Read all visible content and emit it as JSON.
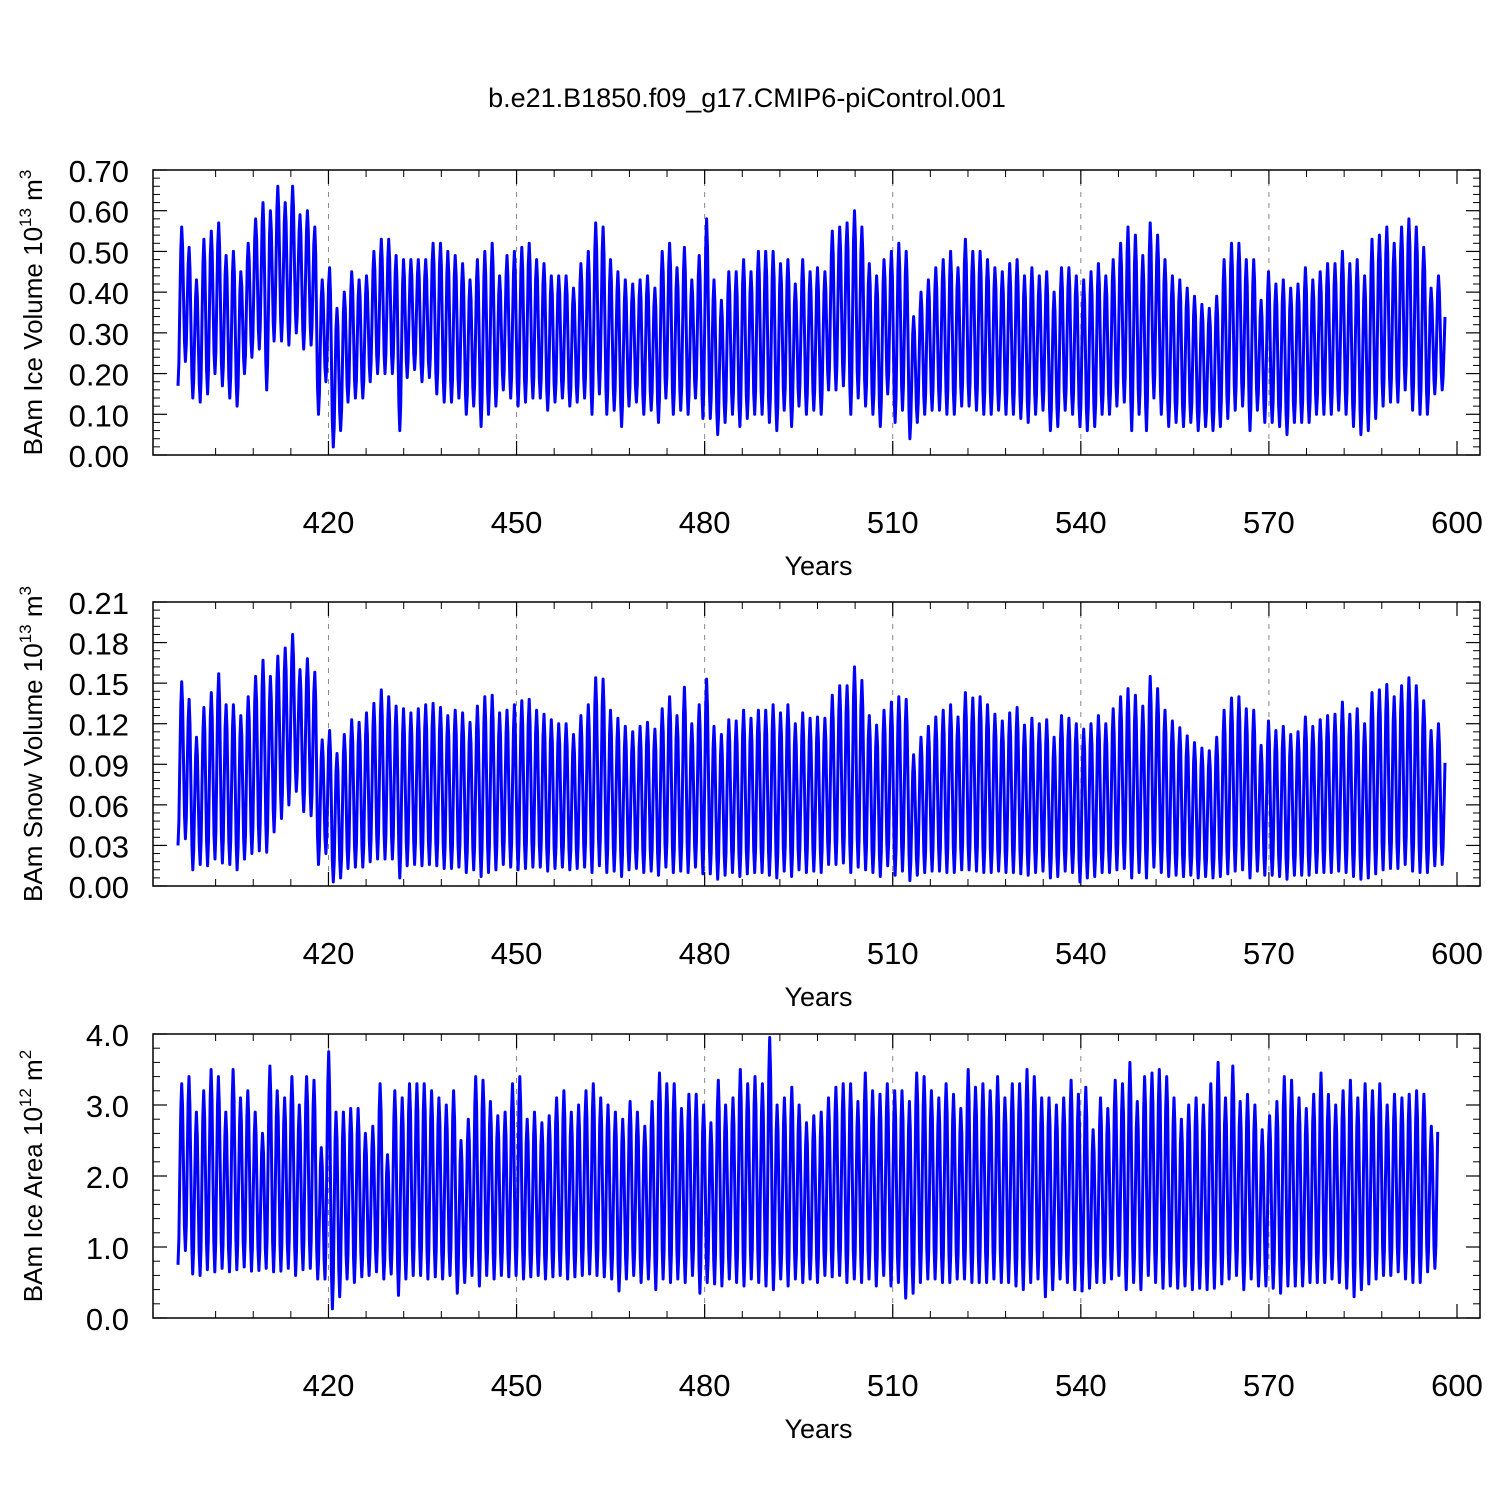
{
  "title": "b.e21.B1850.f09_g17.CMIP6-piControl.001",
  "line_color": "#0000ff",
  "chart_data": [
    {
      "type": "line",
      "id": "ice_volume",
      "ylabel": "BAm Ice Volume 10",
      "ylabel_exp": "13",
      "ylabel_unit": " m",
      "ylabel_unit_exp": "3",
      "xlabel": "Years",
      "xlim": [
        396,
        600
      ],
      "ylim": [
        0,
        0.7
      ],
      "xticks": [
        420,
        450,
        480,
        510,
        540,
        570,
        600
      ],
      "yticks": [
        0.0,
        0.1,
        0.2,
        0.3,
        0.4,
        0.5,
        0.6,
        0.7
      ],
      "ytick_labels": [
        "0.00",
        "0.10",
        "0.20",
        "0.30",
        "0.40",
        "0.50",
        "0.60",
        "0.70"
      ],
      "xgrid": "dashed",
      "annual_max": [
        0.56,
        0.51,
        0.43,
        0.53,
        0.55,
        0.57,
        0.49,
        0.5,
        0.45,
        0.52,
        0.58,
        0.62,
        0.6,
        0.66,
        0.62,
        0.66,
        0.59,
        0.6,
        0.56,
        0.43,
        0.46,
        0.36,
        0.4,
        0.45,
        0.43,
        0.44,
        0.5,
        0.53,
        0.53,
        0.49,
        0.48,
        0.48,
        0.48,
        0.48,
        0.52,
        0.52,
        0.5,
        0.49,
        0.47,
        0.43,
        0.48,
        0.5,
        0.52,
        0.44,
        0.49,
        0.5,
        0.51,
        0.52,
        0.48,
        0.47,
        0.44,
        0.44,
        0.44,
        0.41,
        0.47,
        0.5,
        0.57,
        0.56,
        0.48,
        0.45,
        0.43,
        0.42,
        0.43,
        0.44,
        0.41,
        0.5,
        0.52,
        0.46,
        0.51,
        0.43,
        0.49,
        0.58,
        0.43,
        0.38,
        0.45,
        0.45,
        0.48,
        0.45,
        0.5,
        0.5,
        0.5,
        0.47,
        0.48,
        0.42,
        0.48,
        0.45,
        0.46,
        0.45,
        0.55,
        0.56,
        0.57,
        0.6,
        0.56,
        0.47,
        0.44,
        0.48,
        0.5,
        0.52,
        0.5,
        0.34,
        0.4,
        0.43,
        0.46,
        0.48,
        0.5,
        0.46,
        0.53,
        0.5,
        0.5,
        0.48,
        0.46,
        0.45,
        0.47,
        0.48,
        0.44,
        0.46,
        0.44,
        0.45,
        0.4,
        0.46,
        0.46,
        0.44,
        0.43,
        0.45,
        0.47,
        0.44,
        0.48,
        0.52,
        0.56,
        0.54,
        0.49,
        0.57,
        0.54,
        0.48,
        0.44,
        0.43,
        0.41,
        0.39,
        0.37,
        0.36,
        0.39,
        0.48,
        0.52,
        0.52,
        0.48,
        0.48,
        0.38,
        0.45,
        0.42,
        0.43,
        0.41,
        0.42,
        0.46,
        0.43,
        0.45,
        0.47,
        0.47,
        0.5,
        0.47,
        0.48,
        0.44,
        0.53,
        0.54,
        0.56,
        0.52,
        0.56,
        0.58,
        0.56,
        0.51,
        0.41,
        0.44,
        0.37,
        0.49
      ],
      "annual_min": [
        0.17,
        0.23,
        0.14,
        0.13,
        0.15,
        0.2,
        0.17,
        0.14,
        0.12,
        0.2,
        0.24,
        0.26,
        0.16,
        0.28,
        0.28,
        0.27,
        0.3,
        0.26,
        0.27,
        0.1,
        0.18,
        0.02,
        0.06,
        0.13,
        0.14,
        0.14,
        0.18,
        0.2,
        0.2,
        0.2,
        0.06,
        0.19,
        0.21,
        0.18,
        0.19,
        0.15,
        0.13,
        0.13,
        0.14,
        0.1,
        0.12,
        0.07,
        0.1,
        0.12,
        0.16,
        0.14,
        0.12,
        0.13,
        0.14,
        0.14,
        0.11,
        0.13,
        0.14,
        0.12,
        0.13,
        0.14,
        0.1,
        0.15,
        0.1,
        0.11,
        0.07,
        0.12,
        0.13,
        0.1,
        0.11,
        0.08,
        0.14,
        0.1,
        0.11,
        0.1,
        0.14,
        0.09,
        0.09,
        0.05,
        0.08,
        0.1,
        0.07,
        0.09,
        0.1,
        0.1,
        0.08,
        0.06,
        0.11,
        0.07,
        0.12,
        0.1,
        0.11,
        0.1,
        0.16,
        0.16,
        0.17,
        0.1,
        0.14,
        0.12,
        0.1,
        0.07,
        0.15,
        0.08,
        0.11,
        0.04,
        0.08,
        0.1,
        0.11,
        0.11,
        0.1,
        0.1,
        0.12,
        0.12,
        0.11,
        0.1,
        0.1,
        0.11,
        0.1,
        0.1,
        0.09,
        0.08,
        0.1,
        0.11,
        0.06,
        0.07,
        0.11,
        0.1,
        0.07,
        0.06,
        0.07,
        0.1,
        0.1,
        0.12,
        0.13,
        0.06,
        0.1,
        0.06,
        0.14,
        0.1,
        0.07,
        0.08,
        0.07,
        0.08,
        0.06,
        0.07,
        0.06,
        0.07,
        0.09,
        0.11,
        0.12,
        0.06,
        0.11,
        0.08,
        0.08,
        0.07,
        0.05,
        0.08,
        0.08,
        0.08,
        0.1,
        0.1,
        0.1,
        0.11,
        0.1,
        0.07,
        0.05,
        0.06,
        0.09,
        0.12,
        0.13,
        0.13,
        0.16,
        0.11,
        0.1,
        0.1,
        0.15,
        0.16
      ]
    },
    {
      "type": "line",
      "id": "snow_volume",
      "ylabel": "BAm Snow Volume 10",
      "ylabel_exp": "13",
      "ylabel_unit": " m",
      "ylabel_unit_exp": "3",
      "xlabel": "Years",
      "xlim": [
        396,
        600
      ],
      "ylim": [
        0,
        0.21
      ],
      "xticks": [
        420,
        450,
        480,
        510,
        540,
        570,
        600
      ],
      "yticks": [
        0.0,
        0.03,
        0.06,
        0.09,
        0.12,
        0.15,
        0.18,
        0.21
      ],
      "ytick_labels": [
        "0.00",
        "0.03",
        "0.06",
        "0.09",
        "0.12",
        "0.15",
        "0.18",
        "0.21"
      ],
      "xgrid": "dashed",
      "annual_max": [
        0.151,
        0.138,
        0.11,
        0.132,
        0.143,
        0.157,
        0.134,
        0.134,
        0.126,
        0.14,
        0.155,
        0.167,
        0.155,
        0.17,
        0.176,
        0.186,
        0.16,
        0.168,
        0.158,
        0.108,
        0.115,
        0.098,
        0.112,
        0.123,
        0.121,
        0.128,
        0.135,
        0.145,
        0.14,
        0.133,
        0.131,
        0.128,
        0.131,
        0.134,
        0.135,
        0.132,
        0.126,
        0.13,
        0.128,
        0.121,
        0.133,
        0.14,
        0.141,
        0.128,
        0.13,
        0.134,
        0.137,
        0.138,
        0.13,
        0.127,
        0.123,
        0.12,
        0.12,
        0.112,
        0.126,
        0.134,
        0.154,
        0.153,
        0.13,
        0.124,
        0.118,
        0.114,
        0.118,
        0.121,
        0.116,
        0.131,
        0.14,
        0.126,
        0.147,
        0.12,
        0.134,
        0.153,
        0.118,
        0.112,
        0.123,
        0.122,
        0.13,
        0.124,
        0.13,
        0.13,
        0.134,
        0.128,
        0.134,
        0.12,
        0.128,
        0.124,
        0.125,
        0.124,
        0.141,
        0.148,
        0.148,
        0.162,
        0.152,
        0.126,
        0.119,
        0.13,
        0.136,
        0.14,
        0.138,
        0.097,
        0.11,
        0.118,
        0.125,
        0.13,
        0.134,
        0.125,
        0.143,
        0.139,
        0.14,
        0.134,
        0.127,
        0.122,
        0.128,
        0.132,
        0.119,
        0.124,
        0.12,
        0.123,
        0.11,
        0.126,
        0.124,
        0.12,
        0.116,
        0.12,
        0.126,
        0.12,
        0.131,
        0.14,
        0.146,
        0.141,
        0.133,
        0.155,
        0.146,
        0.13,
        0.122,
        0.117,
        0.111,
        0.106,
        0.102,
        0.1,
        0.11,
        0.13,
        0.139,
        0.14,
        0.131,
        0.13,
        0.104,
        0.122,
        0.115,
        0.118,
        0.112,
        0.114,
        0.125,
        0.118,
        0.123,
        0.126,
        0.127,
        0.136,
        0.127,
        0.131,
        0.12,
        0.143,
        0.145,
        0.149,
        0.14,
        0.148,
        0.154,
        0.148,
        0.137,
        0.115,
        0.12,
        0.104,
        0.131
      ],
      "annual_min": [
        0.03,
        0.035,
        0.012,
        0.016,
        0.015,
        0.02,
        0.017,
        0.016,
        0.012,
        0.02,
        0.024,
        0.026,
        0.025,
        0.04,
        0.05,
        0.06,
        0.07,
        0.055,
        0.052,
        0.016,
        0.024,
        0.003,
        0.006,
        0.013,
        0.014,
        0.014,
        0.018,
        0.02,
        0.02,
        0.02,
        0.006,
        0.015,
        0.016,
        0.015,
        0.016,
        0.015,
        0.013,
        0.013,
        0.014,
        0.01,
        0.012,
        0.007,
        0.01,
        0.012,
        0.016,
        0.014,
        0.012,
        0.013,
        0.014,
        0.014,
        0.011,
        0.013,
        0.014,
        0.012,
        0.013,
        0.014,
        0.01,
        0.015,
        0.01,
        0.011,
        0.007,
        0.012,
        0.013,
        0.01,
        0.011,
        0.008,
        0.014,
        0.01,
        0.011,
        0.01,
        0.014,
        0.009,
        0.009,
        0.005,
        0.008,
        0.01,
        0.007,
        0.009,
        0.01,
        0.01,
        0.008,
        0.006,
        0.011,
        0.007,
        0.012,
        0.01,
        0.011,
        0.01,
        0.016,
        0.016,
        0.017,
        0.01,
        0.014,
        0.012,
        0.01,
        0.007,
        0.015,
        0.008,
        0.011,
        0.004,
        0.008,
        0.01,
        0.011,
        0.011,
        0.01,
        0.01,
        0.012,
        0.012,
        0.011,
        0.01,
        0.01,
        0.011,
        0.01,
        0.01,
        0.009,
        0.008,
        0.01,
        0.011,
        0.006,
        0.007,
        0.011,
        0.01,
        0.003,
        0.006,
        0.007,
        0.01,
        0.01,
        0.012,
        0.013,
        0.006,
        0.01,
        0.006,
        0.014,
        0.01,
        0.007,
        0.008,
        0.007,
        0.008,
        0.006,
        0.007,
        0.006,
        0.007,
        0.009,
        0.011,
        0.012,
        0.006,
        0.011,
        0.008,
        0.008,
        0.007,
        0.005,
        0.008,
        0.008,
        0.008,
        0.01,
        0.01,
        0.01,
        0.011,
        0.01,
        0.007,
        0.005,
        0.006,
        0.009,
        0.012,
        0.013,
        0.013,
        0.016,
        0.011,
        0.01,
        0.01,
        0.015,
        0.016
      ]
    },
    {
      "type": "line",
      "id": "ice_area",
      "ylabel": "BAm Ice Area 10",
      "ylabel_exp": "12",
      "ylabel_unit": " m",
      "ylabel_unit_exp": "2",
      "xlabel": "Years",
      "xlim": [
        396,
        600
      ],
      "ylim": [
        0,
        4.0
      ],
      "xticks": [
        420,
        450,
        480,
        510,
        540,
        570,
        600
      ],
      "yticks": [
        0.0,
        1.0,
        2.0,
        3.0,
        4.0
      ],
      "ytick_labels": [
        "0.0",
        "1.0",
        "2.0",
        "3.0",
        "4.0"
      ],
      "xgrid": "dashed",
      "annual_max": [
        3.3,
        3.4,
        2.9,
        3.2,
        3.5,
        3.4,
        2.9,
        3.5,
        3.1,
        3.2,
        2.9,
        2.6,
        3.55,
        3.2,
        3.1,
        3.4,
        3.0,
        3.4,
        3.35,
        2.4,
        3.75,
        2.9,
        2.9,
        2.95,
        2.95,
        2.6,
        2.7,
        3.3,
        2.3,
        3.2,
        3.1,
        3.3,
        3.3,
        3.3,
        3.2,
        3.1,
        3.0,
        3.2,
        2.5,
        2.8,
        3.4,
        3.35,
        3.05,
        2.85,
        2.9,
        3.3,
        3.4,
        2.8,
        2.9,
        2.75,
        2.85,
        3.1,
        3.2,
        2.9,
        3.0,
        3.2,
        3.3,
        3.1,
        3.0,
        2.9,
        2.8,
        3.05,
        2.9,
        2.7,
        3.05,
        3.45,
        3.3,
        3.3,
        2.95,
        3.15,
        3.15,
        3.0,
        2.75,
        3.35,
        3.0,
        3.1,
        3.5,
        3.3,
        3.4,
        3.3,
        3.95,
        3.0,
        3.1,
        3.25,
        3.0,
        2.75,
        2.85,
        2.9,
        3.1,
        3.25,
        3.3,
        3.3,
        3.05,
        3.45,
        3.2,
        3.15,
        3.3,
        3.2,
        3.2,
        3.05,
        3.45,
        3.4,
        3.2,
        3.1,
        3.3,
        3.15,
        2.95,
        3.5,
        3.25,
        3.3,
        3.2,
        3.4,
        3.1,
        3.3,
        3.3,
        3.5,
        3.4,
        3.1,
        3.1,
        3.0,
        3.1,
        3.35,
        3.15,
        3.25,
        2.65,
        3.1,
        2.95,
        3.35,
        3.3,
        3.6,
        3.05,
        3.4,
        3.45,
        3.5,
        3.4,
        3.1,
        2.8,
        3.0,
        3.1,
        3.0,
        3.3,
        3.6,
        3.1,
        3.55,
        3.05,
        3.15,
        3.0,
        2.65,
        2.85,
        3.05,
        3.4,
        3.35,
        3.1,
        2.95,
        3.15,
        3.45,
        3.15,
        3.0,
        3.2,
        3.35,
        3.1,
        3.3,
        3.2,
        3.3,
        3.0,
        3.15,
        3.1,
        3.15,
        3.2,
        3.15,
        2.7,
        2.95,
        3.3,
        3.25
      ],
      "annual_min": [
        0.75,
        0.95,
        0.62,
        0.6,
        0.68,
        0.65,
        0.7,
        0.65,
        0.68,
        0.72,
        0.66,
        0.67,
        0.7,
        0.65,
        0.66,
        0.7,
        0.6,
        0.68,
        0.7,
        0.55,
        0.55,
        0.13,
        0.3,
        0.55,
        0.5,
        0.58,
        0.6,
        0.65,
        0.55,
        0.62,
        0.32,
        0.55,
        0.6,
        0.6,
        0.55,
        0.58,
        0.55,
        0.6,
        0.35,
        0.5,
        0.6,
        0.45,
        0.6,
        0.55,
        0.6,
        0.58,
        0.6,
        0.55,
        0.58,
        0.6,
        0.55,
        0.58,
        0.6,
        0.55,
        0.58,
        0.6,
        0.62,
        0.6,
        0.58,
        0.55,
        0.38,
        0.55,
        0.6,
        0.5,
        0.55,
        0.4,
        0.55,
        0.5,
        0.55,
        0.5,
        0.6,
        0.35,
        0.5,
        0.48,
        0.45,
        0.55,
        0.5,
        0.45,
        0.55,
        0.5,
        0.45,
        0.4,
        0.55,
        0.45,
        0.55,
        0.5,
        0.55,
        0.5,
        0.6,
        0.58,
        0.6,
        0.5,
        0.55,
        0.5,
        0.55,
        0.45,
        0.6,
        0.45,
        0.5,
        0.28,
        0.35,
        0.5,
        0.55,
        0.55,
        0.5,
        0.5,
        0.55,
        0.55,
        0.5,
        0.5,
        0.5,
        0.55,
        0.5,
        0.5,
        0.45,
        0.4,
        0.5,
        0.55,
        0.3,
        0.4,
        0.55,
        0.5,
        0.4,
        0.38,
        0.42,
        0.5,
        0.5,
        0.55,
        0.6,
        0.4,
        0.5,
        0.4,
        0.6,
        0.5,
        0.42,
        0.45,
        0.42,
        0.45,
        0.4,
        0.42,
        0.4,
        0.42,
        0.48,
        0.55,
        0.6,
        0.4,
        0.55,
        0.45,
        0.45,
        0.42,
        0.35,
        0.45,
        0.45,
        0.45,
        0.5,
        0.5,
        0.5,
        0.55,
        0.5,
        0.42,
        0.3,
        0.4,
        0.48,
        0.55,
        0.6,
        0.6,
        0.65,
        0.55,
        0.5,
        0.5,
        0.65,
        0.7
      ]
    }
  ]
}
